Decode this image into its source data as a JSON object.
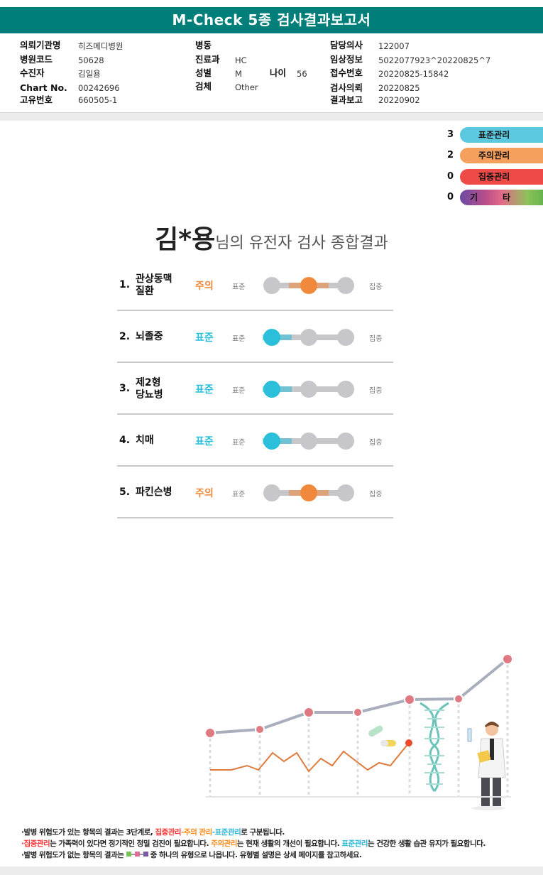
{
  "report_title": "M-Check 5종 검사결과보고서",
  "patient_info": {
    "institution_label": "의뢰기관명",
    "institution_value": "히즈메디병원",
    "hospital_code_label": "병원코드",
    "hospital_code_value": "50628",
    "patient_label": "수진자",
    "patient_value": "김일용",
    "chart_label": "Chart No.",
    "chart_value": "00242696",
    "unique_label": "고유번호",
    "unique_value": "660505-1",
    "ward_label": "병동",
    "ward_value": "",
    "dept_label": "진료과",
    "dept_value": "HC",
    "sex_label": "성별",
    "sex_value": "M",
    "age_label": "나이",
    "age_value": "56",
    "specimen_label": "검체",
    "specimen_value": "Other",
    "doctor_label": "담당의사",
    "doctor_value": "122007",
    "clinical_label": "임상정보",
    "clinical_value": "5022077923^20220825^7",
    "receipt_label": "접수번호",
    "receipt_value": "20220825-15842",
    "test_date_label": "검사의뢰",
    "test_date_value": "20220825",
    "report_date_label": "결과보고",
    "report_date_value": "20220902"
  },
  "summary_counts": [
    {
      "count": "3",
      "label": "표준관리",
      "color": "#5bc8e0"
    },
    {
      "count": "2",
      "label": "주의관리",
      "color": "#f5a05c"
    },
    {
      "count": "0",
      "label": "집중관리",
      "color": "#ee4a48"
    },
    {
      "count": "0",
      "label": "기   타",
      "label_parts": [
        "기",
        "타"
      ],
      "color": "gradient"
    }
  ],
  "heading": {
    "name": "김*용",
    "suffix": "님의 유전자 검사 종합결과"
  },
  "scale_labels": {
    "low": "표준",
    "high": "집중"
  },
  "results": [
    {
      "num": "1.",
      "disease": "관상동맥\n질환",
      "status": "주의",
      "level": 2
    },
    {
      "num": "2.",
      "disease": "뇌졸중",
      "status": "표준",
      "level": 1
    },
    {
      "num": "3.",
      "disease": "제2형\n당뇨병",
      "status": "표준",
      "level": 1
    },
    {
      "num": "4.",
      "disease": "치매",
      "status": "표준",
      "level": 1
    },
    {
      "num": "5.",
      "disease": "파킨슨병",
      "status": "주의",
      "level": 2
    }
  ],
  "colors": {
    "header": "#007f7a",
    "standard": "#2bbfd9",
    "caution": "#f0893b",
    "focus": "#ee4a48",
    "track_gray": "#c6c6cb"
  },
  "notes": {
    "line1_prefix": "·발병 위험도가 있는 항목의 결과는 3단계로, ",
    "line1_red": "집중관리",
    "line1_sep1": "-",
    "line1_orange": "주의 관리",
    "line1_sep2": "-",
    "line1_teal": "표준관리",
    "line1_suffix": "로 구분됩니다.",
    "line2_red": "·집중관리",
    "line2_a": "는 가족력이 있다면 정기적인 정밀 검진이 필요합니다. ",
    "line2_orange": "주의관리",
    "line2_b": "는 현재 생활의 개선이 필요합니다. ",
    "line2_teal": "표준관리",
    "line2_c": "는 건강한 생활 습관 유지가 필요합니다.",
    "line3_a": "·발병 위험도가 없는 항목의 결과는 ",
    "line3_b": " 중 하나의 유형으로 나옵니다. 유형별 설명은 상세 페이지를 참고하세요."
  }
}
